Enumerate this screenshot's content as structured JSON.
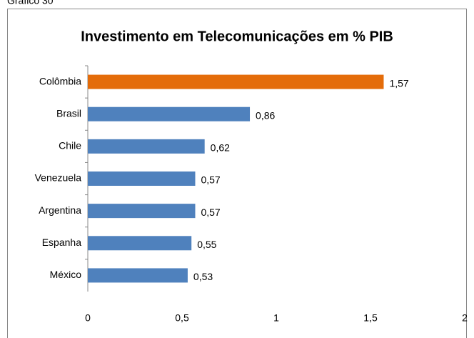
{
  "caption": "Gráfico 30",
  "chart_data": {
    "type": "barh",
    "title": "Investimento em Telecomunicações em % PIB",
    "categories": [
      "Colômbia",
      "Brasil",
      "Chile",
      "Venezuela",
      "Argentina",
      "Espanha",
      "México"
    ],
    "values": [
      1.57,
      0.86,
      0.62,
      0.57,
      0.57,
      0.55,
      0.53
    ],
    "value_labels": [
      "1,57",
      "0,86",
      "0,62",
      "0,57",
      "0,57",
      "0,55",
      "0,53"
    ],
    "colors": [
      "#e46c0a",
      "#4f81bd",
      "#4f81bd",
      "#4f81bd",
      "#4f81bd",
      "#4f81bd",
      "#4f81bd"
    ],
    "xlim": [
      0,
      2
    ],
    "xticks": [
      0,
      {
        "value": 0.5,
        "label": "0,5"
      },
      1,
      {
        "value": 1.5,
        "label": "1,5"
      },
      2
    ],
    "grid": false
  }
}
